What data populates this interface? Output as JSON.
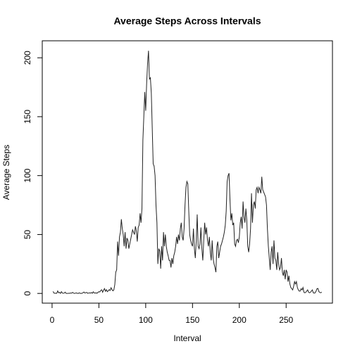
{
  "chart_data": {
    "type": "line",
    "title": "Average Steps Across Intervals",
    "x_label": "Interval",
    "y_label": "Average Steps",
    "x": [
      1,
      2,
      3,
      4,
      5,
      6,
      7,
      8,
      9,
      10,
      11,
      12,
      13,
      14,
      15,
      16,
      17,
      18,
      19,
      20,
      21,
      22,
      23,
      24,
      25,
      26,
      27,
      28,
      29,
      30,
      31,
      32,
      33,
      34,
      35,
      36,
      37,
      38,
      39,
      40,
      41,
      42,
      43,
      44,
      45,
      46,
      47,
      48,
      49,
      50,
      51,
      52,
      53,
      54,
      55,
      56,
      57,
      58,
      59,
      60,
      61,
      62,
      63,
      64,
      65,
      66,
      67,
      68,
      69,
      70,
      71,
      72,
      73,
      74,
      75,
      76,
      77,
      78,
      79,
      80,
      81,
      82,
      83,
      84,
      85,
      86,
      87,
      88,
      89,
      90,
      91,
      92,
      93,
      94,
      95,
      96,
      97,
      98,
      99,
      100,
      101,
      102,
      103,
      104,
      105,
      106,
      107,
      108,
      109,
      110,
      111,
      112,
      113,
      114,
      115,
      116,
      117,
      118,
      119,
      120,
      121,
      122,
      123,
      124,
      125,
      126,
      127,
      128,
      129,
      130,
      131,
      132,
      133,
      134,
      135,
      136,
      137,
      138,
      139,
      140,
      141,
      142,
      143,
      144,
      145,
      146,
      147,
      148,
      149,
      150,
      151,
      152,
      153,
      154,
      155,
      156,
      157,
      158,
      159,
      160,
      161,
      162,
      163,
      164,
      165,
      166,
      167,
      168,
      169,
      170,
      171,
      172,
      173,
      174,
      175,
      176,
      177,
      178,
      179,
      180,
      181,
      182,
      183,
      184,
      185,
      186,
      187,
      188,
      189,
      190,
      191,
      192,
      193,
      194,
      195,
      196,
      197,
      198,
      199,
      200,
      201,
      202,
      203,
      204,
      205,
      206,
      207,
      208,
      209,
      210,
      211,
      212,
      213,
      214,
      215,
      216,
      217,
      218,
      219,
      220,
      221,
      222,
      223,
      224,
      225,
      226,
      227,
      228,
      229,
      230,
      231,
      232,
      233,
      234,
      235,
      236,
      237,
      238,
      239,
      240,
      241,
      242,
      243,
      244,
      245,
      246,
      247,
      248,
      249,
      250,
      251,
      252,
      253,
      254,
      255,
      256,
      257,
      258,
      259,
      260,
      261,
      262,
      263,
      264,
      265,
      266,
      267,
      268,
      269,
      270,
      271,
      272,
      273,
      274,
      275,
      276,
      277,
      278,
      279,
      280,
      281,
      282,
      283,
      284,
      285,
      286,
      287,
      288
    ],
    "series": [
      {
        "name": "Average Steps",
        "color": "#222222",
        "values": [
          1.7,
          0.3,
          0.1,
          0.2,
          0.1,
          2.1,
          0.5,
          0.9,
          0,
          1.5,
          0.3,
          0.1,
          0.3,
          1.1,
          0,
          0,
          0,
          0.2,
          0.1,
          0.4,
          0.2,
          0.9,
          0.2,
          0,
          0.3,
          0.4,
          0.1,
          0,
          0.5,
          0.1,
          0,
          0.2,
          0.5,
          1.2,
          0.3,
          0.6,
          0.9,
          0.1,
          0.3,
          0.5,
          0.2,
          0.8,
          0.1,
          1.4,
          0.4,
          0.3,
          0.5,
          0.1,
          0.9,
          1.5,
          1.2,
          2.5,
          3.1,
          1.0,
          2.8,
          4.1,
          1.8,
          3.2,
          1.5,
          2.2,
          3.2,
          2.5,
          4.8,
          3.1,
          2.2,
          3.0,
          7.5,
          18,
          20,
          44,
          32,
          48,
          52,
          63,
          55,
          50,
          40,
          52,
          38,
          47,
          45,
          38,
          42,
          46,
          50,
          54,
          52,
          50,
          57,
          53,
          44,
          56,
          58,
          68,
          60,
          72,
          130,
          150,
          171,
          155,
          178,
          195,
          206,
          182,
          183,
          170,
          140,
          110,
          108,
          100,
          75,
          60,
          25,
          38,
          36,
          21,
          40,
          28,
          52,
          40,
          50,
          40,
          35,
          32,
          28,
          28,
          22,
          30,
          25,
          32,
          35,
          40,
          48,
          42,
          50,
          45,
          55,
          60,
          48,
          45,
          55,
          75,
          90,
          95,
          93,
          70,
          50,
          45,
          42,
          40,
          55,
          38,
          30,
          45,
          67,
          40,
          38,
          42,
          56,
          38,
          28,
          45,
          60,
          50,
          56,
          45,
          40,
          48,
          35,
          28,
          45,
          30,
          25,
          22,
          18,
          40,
          44,
          30,
          35,
          40,
          42,
          45,
          48,
          52,
          58,
          70,
          95,
          100,
          102,
          80,
          62,
          68,
          58,
          60,
          42,
          40,
          45,
          46,
          43,
          48,
          60,
          65,
          55,
          78,
          65,
          60,
          72,
          62,
          40,
          35,
          42,
          55,
          85,
          60,
          75,
          78,
          72,
          88,
          90,
          85,
          90,
          88,
          85,
          99,
          88,
          86,
          84,
          82,
          75,
          55,
          40,
          30,
          20,
          35,
          40,
          25,
          45,
          30,
          28,
          20,
          35,
          25,
          20,
          22,
          30,
          18,
          15,
          20,
          12,
          20,
          18,
          10,
          15,
          8,
          5,
          4,
          3,
          6,
          10,
          8,
          10,
          5,
          3,
          2,
          2,
          4,
          3,
          5,
          1,
          0.5,
          1,
          2,
          3,
          1,
          0.5,
          1,
          2,
          3,
          0.5,
          0.3,
          0.5,
          2,
          4,
          4.2,
          1.5,
          0.8,
          0.6,
          1.1
        ]
      }
    ],
    "xlim": [
      -10.48,
      299.48
    ],
    "xticks": [
      0,
      50,
      100,
      150,
      200,
      250
    ],
    "ylim": [
      -8.25,
      214.42
    ],
    "yticks": [
      0,
      50,
      100,
      150,
      200
    ]
  }
}
